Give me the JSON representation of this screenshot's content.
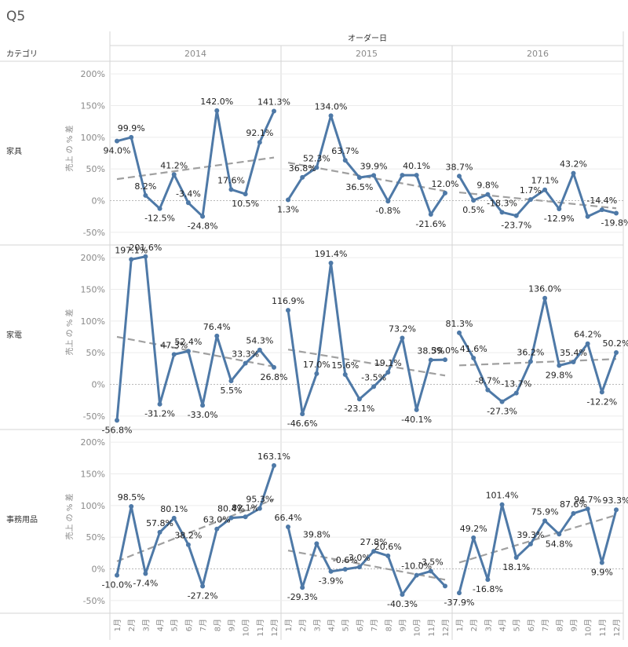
{
  "sheet_title": "Q5",
  "header": {
    "row_dimension_label": "カテゴリ",
    "column_dimension_label": "オーダー日"
  },
  "colors": {
    "series_line": "#4e79a7",
    "trend_line": "#a0a0a0",
    "zero_line": "#b8b8b8",
    "grid": "#ececec",
    "border": "#d4d4d4",
    "axis_text": "#8a8a8a",
    "label_text": "#222222"
  },
  "chart_data": {
    "type": "line",
    "title": "Q5",
    "ylabel": "売上 の % 差",
    "y_ticks": [
      "200%",
      "150%",
      "100%",
      "50%",
      "0%",
      "-50%"
    ],
    "y_tick_values": [
      200,
      150,
      100,
      50,
      0,
      -50
    ],
    "ylim": [
      -60,
      210
    ],
    "grid": true,
    "trend_lines": true,
    "years": [
      "2014",
      "2015",
      "2016"
    ],
    "months": [
      "1月",
      "2月",
      "3月",
      "4月",
      "5月",
      "6月",
      "7月",
      "8月",
      "9月",
      "10月",
      "11月",
      "12月"
    ],
    "rows": [
      {
        "category": "家具",
        "panels": [
          {
            "year": "2014",
            "values": [
              94.0,
              99.9,
              8.2,
              -12.5,
              41.2,
              -3.4,
              -24.8,
              142.0,
              17.6,
              10.5,
              92.1,
              141.3
            ],
            "labels": [
              "94.0%",
              "99.9%",
              "8.2%",
              "-12.5%",
              "41.2%",
              "-3.4%",
              "-24.8%",
              "142.0%",
              "17.6%",
              "10.5%",
              "92.1%",
              "141.3%"
            ],
            "trend": [
              34,
              68
            ]
          },
          {
            "year": "2015",
            "values": [
              1.3,
              36.8,
              52.3,
              134.0,
              63.7,
              36.5,
              39.9,
              -0.8,
              40.1,
              40.1,
              -21.6,
              12.0
            ],
            "labels": [
              "1.3%",
              "36.8%",
              "52.3%",
              "134.0%",
              "63.7%",
              "36.5%",
              "39.9%",
              "-0.8%",
              "",
              "40.1%",
              "-21.6%",
              "12.0%"
            ],
            "trend": [
              60,
              15
            ]
          },
          {
            "year": "2016",
            "values": [
              38.7,
              0.5,
              9.8,
              -18.3,
              -23.7,
              1.7,
              17.1,
              -12.9,
              43.2,
              -25.0,
              -14.4,
              -19.8
            ],
            "labels": [
              "38.7%",
              "0.5%",
              "9.8%",
              "-18.3%",
              "-23.7%",
              "1.7%",
              "17.1%",
              "-12.9%",
              "43.2%",
              "",
              "-14.4%",
              "-19.8%"
            ],
            "trend": [
              13,
              -12
            ]
          }
        ]
      },
      {
        "category": "家電",
        "panels": [
          {
            "year": "2014",
            "values": [
              -56.8,
              197.1,
              201.6,
              -31.2,
              47.3,
              52.4,
              -33.0,
              76.4,
              5.5,
              33.3,
              54.3,
              26.8
            ],
            "labels": [
              "-56.8%",
              "197.1%",
              "201.6%",
              "-31.2%",
              "47.3%",
              "52.4%",
              "-33.0%",
              "76.4%",
              "5.5%",
              "33.3%",
              "54.3%",
              "26.8%"
            ],
            "trend": [
              75,
              28
            ]
          },
          {
            "year": "2015",
            "values": [
              116.9,
              -46.6,
              17.0,
              191.4,
              15.6,
              -23.1,
              -3.5,
              19.1,
              73.2,
              -40.1,
              38.5,
              39.0
            ],
            "labels": [
              "116.9%",
              "-46.6%",
              "17.0%",
              "191.4%",
              "15.6%",
              "-23.1%",
              "-3.5%",
              "19.1%",
              "73.2%",
              "-40.1%",
              "38.5%",
              "39.0%"
            ],
            "trend": [
              55,
              14
            ]
          },
          {
            "year": "2016",
            "values": [
              81.3,
              41.6,
              -8.7,
              -27.3,
              -13.7,
              36.2,
              136.0,
              29.8,
              35.4,
              64.2,
              -12.2,
              50.2
            ],
            "labels": [
              "81.3%",
              "41.6%",
              "-8.7%",
              "-27.3%",
              "-13.7%",
              "36.2%",
              "136.0%",
              "29.8%",
              "35.4%",
              "64.2%",
              "-12.2%",
              "50.2%"
            ],
            "trend": [
              30,
              40
            ]
          }
        ]
      },
      {
        "category": "事務用品",
        "panels": [
          {
            "year": "2014",
            "values": [
              -10.0,
              98.5,
              -7.4,
              57.8,
              80.1,
              38.2,
              -27.2,
              63.0,
              80.4,
              82.1,
              95.3,
              163.1
            ],
            "labels": [
              "-10.0%",
              "98.5%",
              "-7.4%",
              "57.8%",
              "80.1%",
              "38.2%",
              "-27.2%",
              "63.0%",
              "80.4%",
              "82.1%",
              "95.3%",
              "163.1%"
            ],
            "trend": [
              12,
              110
            ]
          },
          {
            "year": "2015",
            "values": [
              66.4,
              -29.3,
              39.8,
              -3.9,
              -0.6,
              3.0,
              27.8,
              20.6,
              -40.3,
              -10.0,
              -3.5,
              -27.0
            ],
            "labels": [
              "66.4%",
              "-29.3%",
              "39.8%",
              "-3.9%",
              "-0.6%",
              "3.0%",
              "27.8%",
              "20.6%",
              "-40.3%",
              "-10.0%",
              "-3.5%",
              ""
            ],
            "trend": [
              29,
              -17
            ]
          },
          {
            "year": "2016",
            "values": [
              -37.9,
              49.2,
              -16.8,
              101.4,
              18.1,
              39.3,
              75.9,
              54.8,
              87.6,
              94.7,
              9.9,
              93.3
            ],
            "labels": [
              "-37.9%",
              "49.2%",
              "-16.8%",
              "101.4%",
              "18.1%",
              "39.3%",
              "75.9%",
              "54.8%",
              "87.6%",
              "94.7%",
              "9.9%",
              "93.3%"
            ],
            "trend": [
              10,
              85
            ]
          }
        ]
      }
    ]
  }
}
